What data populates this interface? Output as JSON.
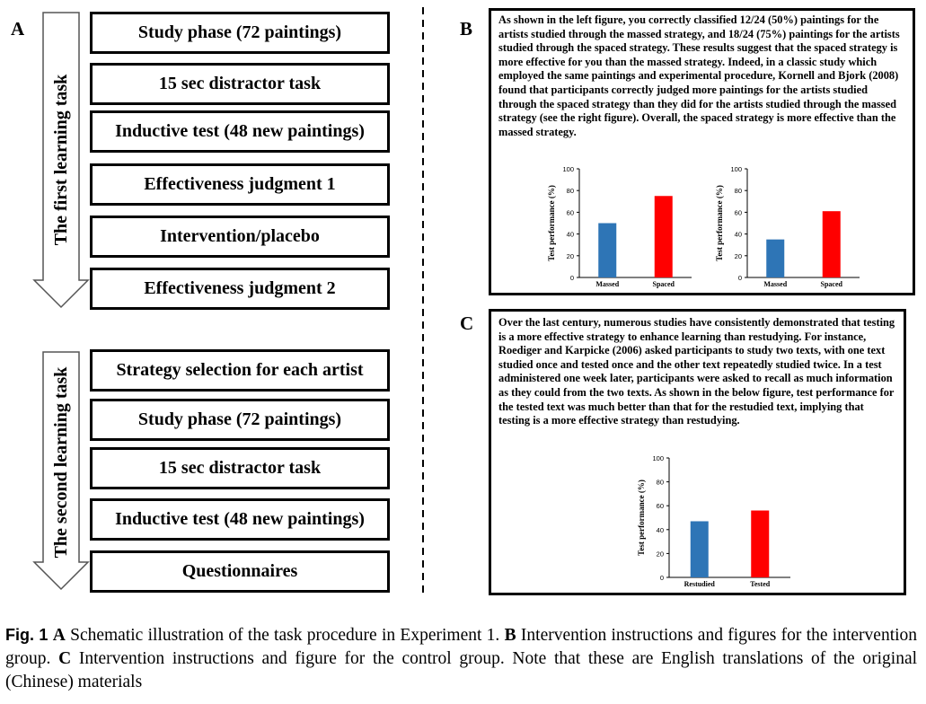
{
  "panel_a": {
    "letter": "A",
    "first_task": "The first learning task",
    "second_task": "The second learning task",
    "first_steps": [
      "Study phase (72 paintings)",
      "15 sec distractor task",
      "Inductive test (48 new paintings)",
      "Effectiveness judgment 1",
      "Intervention/placebo",
      "Effectiveness judgment 2"
    ],
    "second_steps": [
      "Strategy selection for each artist",
      "Study phase (72 paintings)",
      "15 sec distractor task",
      "Inductive test (48 new paintings)",
      "Questionnaires"
    ]
  },
  "panel_b": {
    "letter": "B",
    "text": "As shown in the left figure, you correctly classified 12/24 (50%) paintings for the artists studied through the massed strategy, and 18/24 (75%) paintings for the artists studied through the spaced strategy. These results suggest that the spaced strategy is more effective for you than the massed strategy. Indeed, in a classic study which employed the same paintings and experimental procedure, Kornell and Bjork (2008) found that participants correctly judged more paintings for the artists studied through the spaced strategy than they did for the artists studied through the massed strategy (see the right figure). Overall, the spaced strategy is more effective than the massed strategy."
  },
  "panel_c": {
    "letter": "C",
    "text": "Over the last century, numerous studies have consistently demonstrated that testing is a more effective strategy to enhance learning than restudying. For instance, Roediger and Karpicke (2006) asked participants to study two texts, with one text studied once and tested once and the other text repeatedly studied twice. In a test administered one week later, participants were asked to recall as much information as they could from the two texts. As shown in the below figure, test performance for the tested text was much better than that for the restudied text, implying that testing is a more effective strategy than restudying."
  },
  "chart_data": [
    {
      "type": "bar",
      "ylabel": "Test performance (%)",
      "categories": [
        "Massed",
        "Spaced"
      ],
      "values": [
        50,
        75
      ],
      "colors": [
        "#2e75b6",
        "#ff0000"
      ],
      "ylim": [
        0,
        100
      ],
      "yticks": [
        0,
        20,
        40,
        60,
        80,
        100
      ]
    },
    {
      "type": "bar",
      "ylabel": "Test performance (%)",
      "categories": [
        "Massed",
        "Spaced"
      ],
      "values": [
        35,
        61
      ],
      "colors": [
        "#2e75b6",
        "#ff0000"
      ],
      "ylim": [
        0,
        100
      ],
      "yticks": [
        0,
        20,
        40,
        60,
        80,
        100
      ]
    },
    {
      "type": "bar",
      "ylabel": "Test performance (%)",
      "categories": [
        "Restudied",
        "Tested"
      ],
      "values": [
        47,
        56
      ],
      "colors": [
        "#2e75b6",
        "#ff0000"
      ],
      "ylim": [
        0,
        100
      ],
      "yticks": [
        0,
        20,
        40,
        60,
        80,
        100
      ]
    }
  ],
  "caption": {
    "label": "Fig. 1",
    "parts": [
      {
        "letter": "A",
        "text": "Schematic illustration of the task procedure in Experiment 1."
      },
      {
        "letter": "B",
        "text": "Intervention instructions and figures for the intervention group."
      },
      {
        "letter": "C",
        "text": "Intervention instructions and figure for the control group. Note that these are English translations of the original (Chinese) materials"
      }
    ]
  }
}
